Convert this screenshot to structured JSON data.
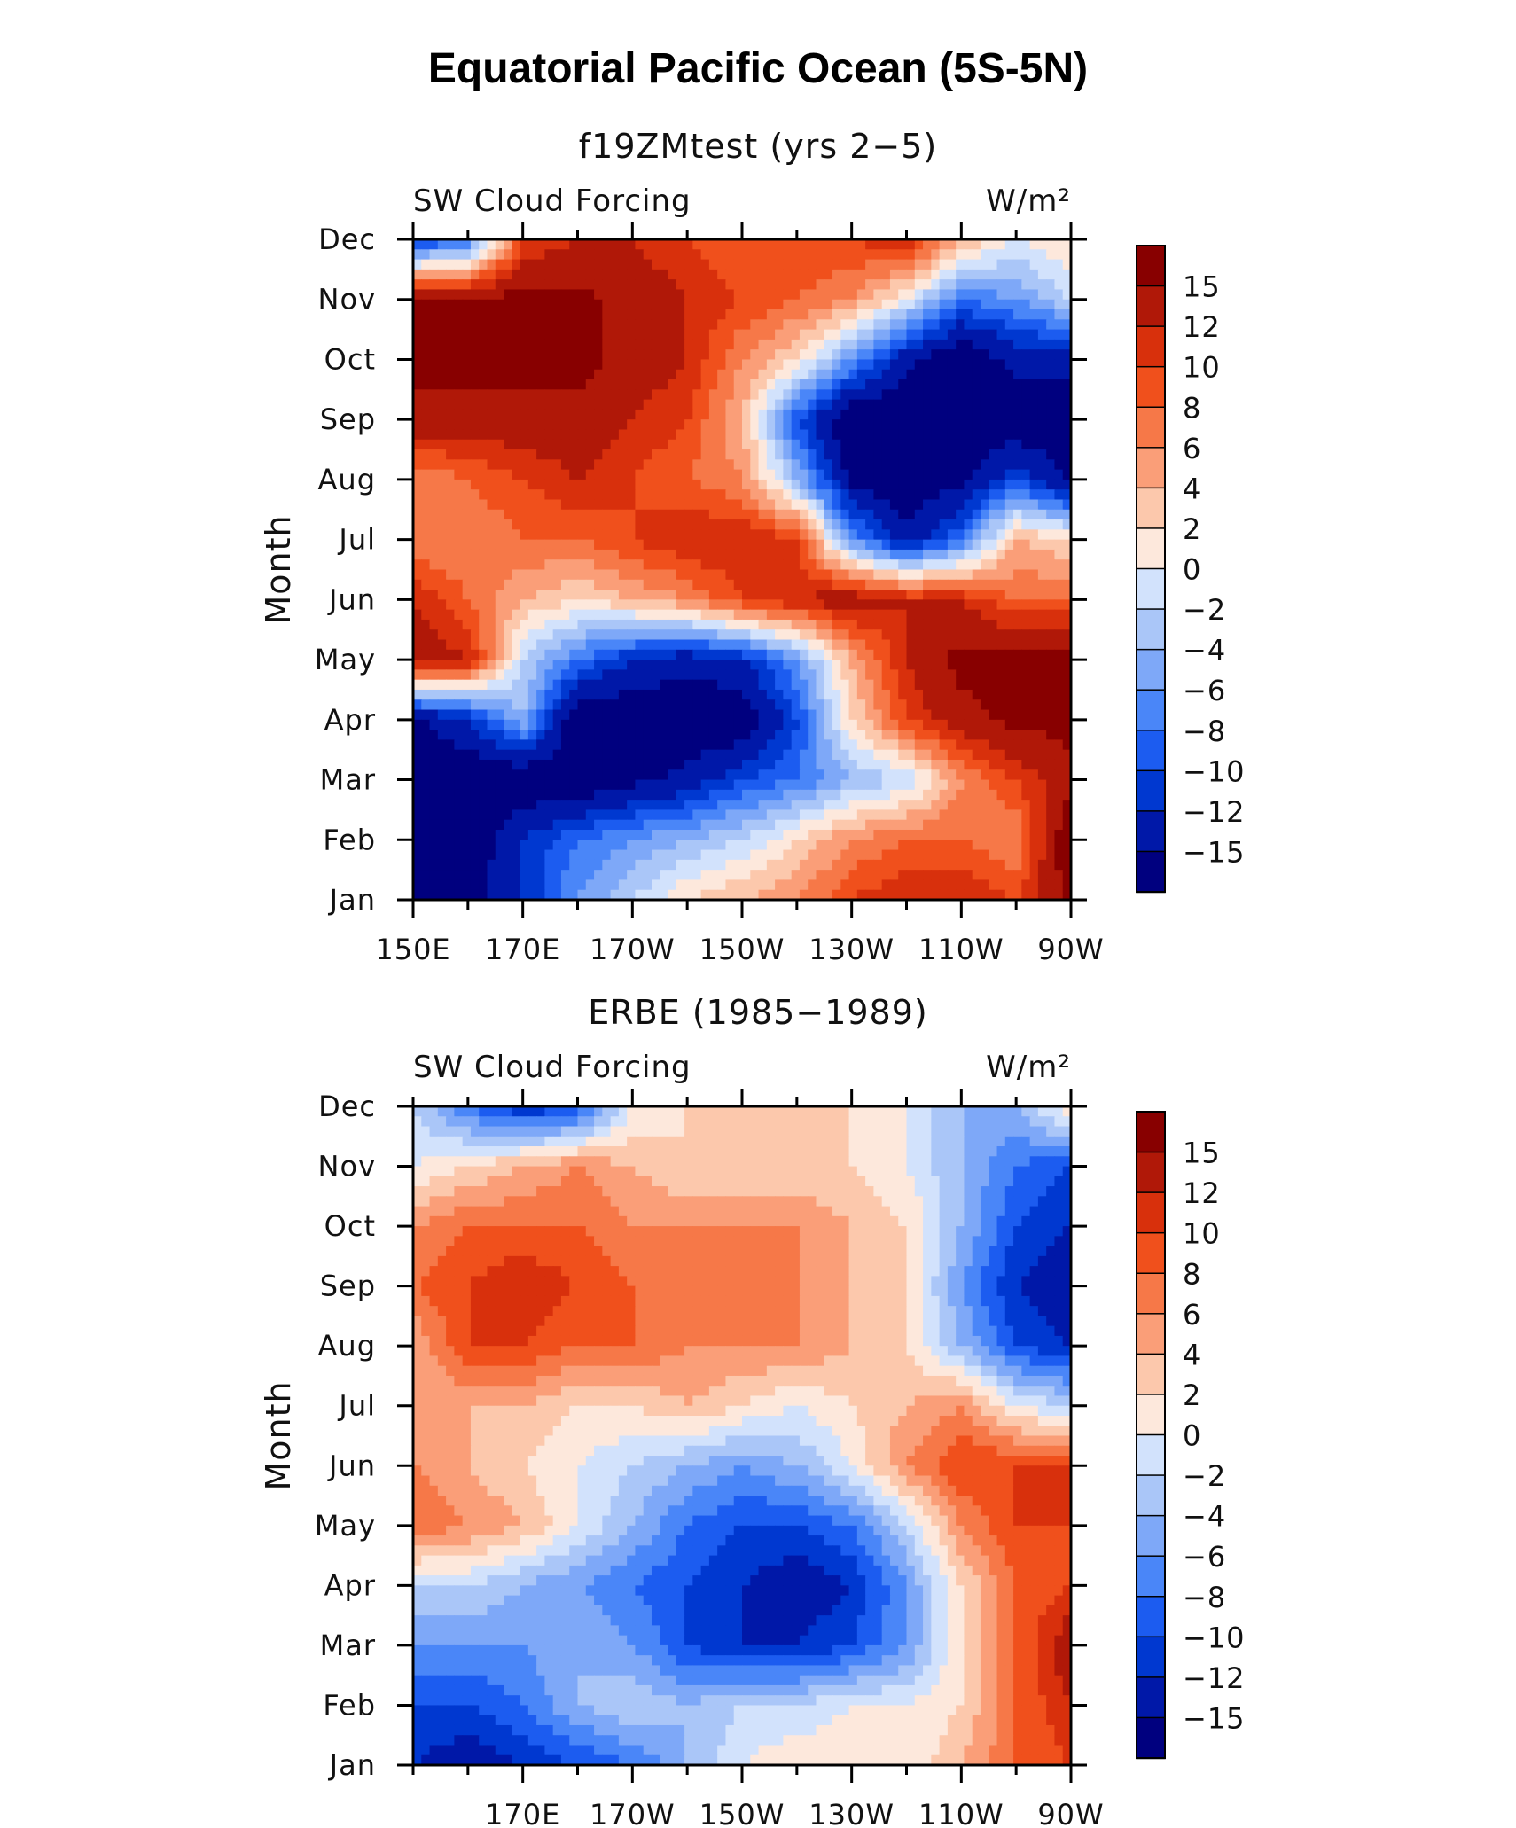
{
  "title": "Equatorial Pacific Ocean (5S-5N)",
  "colors": {
    "levels": [
      "#00007f",
      "#0018a8",
      "#0038d0",
      "#1c5cf0",
      "#4a86f8",
      "#7ea8f8",
      "#aac6f8",
      "#d2e2fc",
      "#fde8dc",
      "#fcc8ac",
      "#fa9e78",
      "#f67848",
      "#f0501c",
      "#d8300c",
      "#b01808",
      "#880000"
    ]
  },
  "chart_data": [
    {
      "type": "heatmap",
      "name": "model",
      "title": "f19ZMtest (yrs 2-5)",
      "title_display": "f19ZMtest (yrs 2−5)",
      "left_label": "SW Cloud Forcing",
      "units": "W/m²",
      "ylabel": "Month",
      "months": [
        "Jan",
        "Feb",
        "Mar",
        "Apr",
        "May",
        "Jun",
        "Jul",
        "Aug",
        "Sep",
        "Oct",
        "Nov",
        "Dec"
      ],
      "x_ticklabels": [
        "150E",
        "170E",
        "170W",
        "150W",
        "130W",
        "110W",
        "90W"
      ],
      "x_ticks_lon": [
        150,
        170,
        190,
        210,
        230,
        250,
        270
      ],
      "xlim": [
        150,
        270
      ],
      "ylim": [
        1,
        12
      ],
      "contour_levels": [
        -15,
        -12,
        -10,
        -8,
        -6,
        -4,
        -2,
        0,
        2,
        4,
        6,
        8,
        10,
        12,
        15
      ],
      "colorbar_labels": [
        "15",
        "12",
        "10",
        "8",
        "6",
        "4",
        "2",
        "0",
        "−2",
        "−4",
        "−6",
        "−8",
        "−10",
        "−12",
        "−15"
      ],
      "lon": [
        150,
        160,
        170,
        180,
        190,
        200,
        210,
        220,
        230,
        240,
        250,
        260,
        270
      ],
      "values": [
        [
          -18,
          -16,
          -12,
          -6,
          -2,
          2,
          4,
          6,
          10,
          12,
          12,
          10,
          16
        ],
        [
          -18,
          -18,
          -12,
          -8,
          -6,
          -4,
          -2,
          2,
          6,
          8,
          8,
          6,
          18
        ],
        [
          -18,
          -18,
          -18,
          -18,
          -16,
          -14,
          -10,
          -8,
          -4,
          -2,
          6,
          10,
          14
        ],
        [
          -16,
          -12,
          -4,
          -18,
          -18,
          -18,
          -18,
          -10,
          2,
          10,
          14,
          16,
          16
        ],
        [
          14,
          12,
          -2,
          -8,
          -12,
          -14,
          -12,
          -6,
          4,
          12,
          16,
          16,
          16
        ],
        [
          12,
          8,
          4,
          2,
          4,
          6,
          10,
          12,
          14,
          12,
          12,
          8,
          8
        ],
        [
          6,
          6,
          8,
          8,
          10,
          12,
          12,
          10,
          -6,
          -14,
          -8,
          4,
          2
        ],
        [
          6,
          8,
          10,
          12,
          10,
          8,
          6,
          -4,
          -16,
          -18,
          -16,
          -10,
          -16
        ],
        [
          14,
          14,
          14,
          14,
          12,
          10,
          4,
          -10,
          -18,
          -18,
          -18,
          -18,
          -18
        ],
        [
          16,
          16,
          16,
          16,
          14,
          12,
          6,
          2,
          -6,
          -14,
          -18,
          -14,
          -14
        ],
        [
          16,
          16,
          16,
          16,
          14,
          12,
          10,
          8,
          6,
          0,
          -8,
          -6,
          -2
        ],
        [
          -12,
          -8,
          10,
          12,
          12,
          10,
          8,
          10,
          10,
          12,
          4,
          0,
          2
        ]
      ]
    },
    {
      "type": "heatmap",
      "name": "obs",
      "title": "ERBE (1985-1989)",
      "title_display": "ERBE (1985−1989)",
      "left_label": "SW Cloud Forcing",
      "units": "W/m²",
      "ylabel": "Month",
      "months": [
        "Jan",
        "Feb",
        "Mar",
        "Apr",
        "May",
        "Jun",
        "Jul",
        "Aug",
        "Sep",
        "Oct",
        "Nov",
        "Dec"
      ],
      "x_ticklabels": [
        "170E",
        "170W",
        "150W",
        "130W",
        "110W",
        "90W"
      ],
      "x_ticks_lon": [
        170,
        190,
        210,
        230,
        250,
        270
      ],
      "xlim": [
        150,
        270
      ],
      "ylim": [
        1,
        12
      ],
      "contour_levels": [
        -15,
        -12,
        -10,
        -8,
        -6,
        -4,
        -2,
        0,
        2,
        4,
        6,
        8,
        10,
        12,
        15
      ],
      "colorbar_labels": [
        "15",
        "12",
        "10",
        "8",
        "6",
        "4",
        "2",
        "0",
        "−2",
        "−4",
        "−6",
        "−8",
        "−10",
        "−12",
        "−15"
      ],
      "lon": [
        150,
        160,
        170,
        180,
        190,
        200,
        210,
        220,
        230,
        240,
        250,
        260,
        270
      ],
      "values": [
        [
          -12,
          -14,
          -12,
          -10,
          -8,
          -4,
          0,
          2,
          2,
          0,
          4,
          8,
          10
        ],
        [
          -10,
          -10,
          -8,
          -4,
          -2,
          -4,
          -2,
          -2,
          0,
          0,
          2,
          8,
          12
        ],
        [
          -6,
          -6,
          -6,
          -4,
          -6,
          -10,
          -12,
          -12,
          -10,
          -6,
          2,
          8,
          14
        ],
        [
          -2,
          -2,
          -4,
          -6,
          -8,
          -10,
          -12,
          -14,
          -12,
          -6,
          2,
          8,
          10
        ],
        [
          8,
          6,
          4,
          0,
          -4,
          -8,
          -10,
          -10,
          -8,
          -2,
          6,
          10,
          10
        ],
        [
          6,
          4,
          2,
          0,
          -2,
          -4,
          -6,
          -4,
          0,
          6,
          10,
          10,
          10
        ],
        [
          4,
          4,
          4,
          2,
          2,
          4,
          2,
          0,
          2,
          4,
          6,
          0,
          -2
        ],
        [
          4,
          10,
          10,
          8,
          8,
          6,
          6,
          6,
          4,
          2,
          -4,
          -10,
          -12
        ],
        [
          8,
          10,
          12,
          10,
          8,
          8,
          6,
          6,
          4,
          2,
          -6,
          -12,
          -14
        ],
        [
          6,
          8,
          8,
          8,
          6,
          6,
          6,
          6,
          4,
          2,
          -4,
          -10,
          -12
        ],
        [
          0,
          2,
          4,
          6,
          4,
          2,
          2,
          2,
          2,
          0,
          -4,
          -8,
          -10
        ],
        [
          -2,
          -8,
          -12,
          -10,
          0,
          2,
          2,
          2,
          2,
          0,
          -4,
          -4,
          2
        ]
      ]
    }
  ]
}
